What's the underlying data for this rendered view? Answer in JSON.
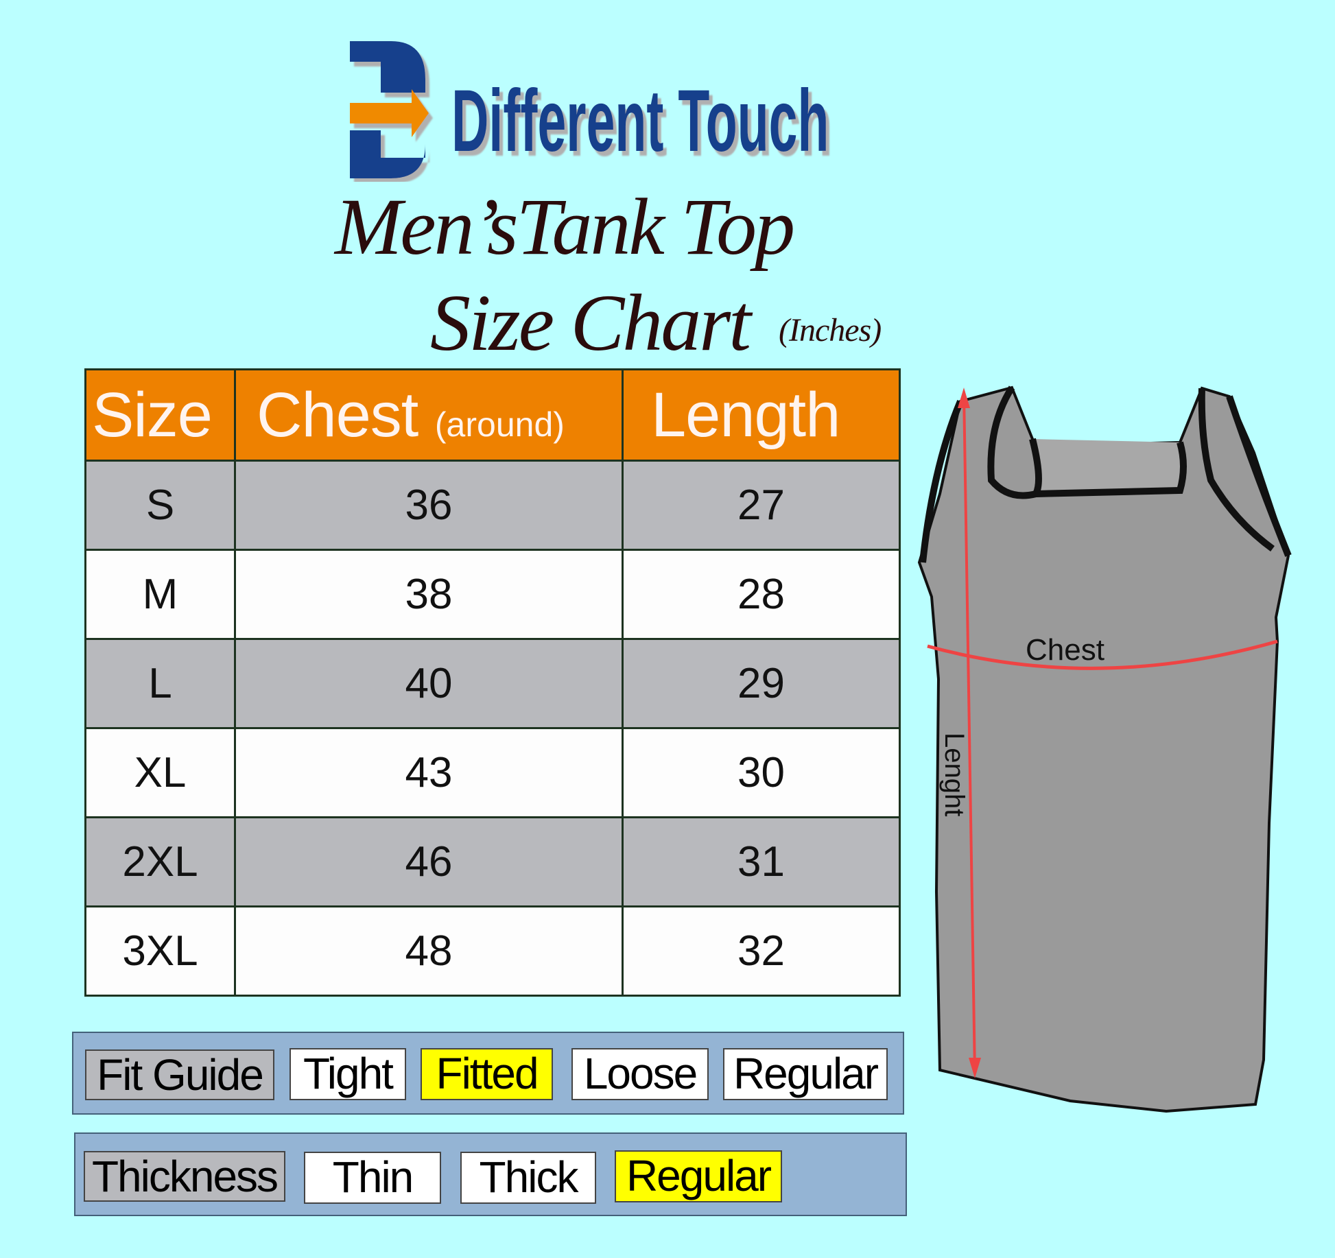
{
  "brand": {
    "name": "Different Touch",
    "colors": {
      "blue": "#123f8c",
      "orange": "#f08a00"
    }
  },
  "title": {
    "line1": "Men’sTank Top",
    "line2": "Size Chart",
    "unit": "(Inches)"
  },
  "table": {
    "headers": {
      "size": "Size",
      "chest": "Chest",
      "chest_note": "(around)",
      "length": "Length"
    },
    "rows": [
      {
        "size": "S",
        "chest": "36",
        "length": "27"
      },
      {
        "size": "M",
        "chest": "38",
        "length": "28"
      },
      {
        "size": "L",
        "chest": "40",
        "length": "29"
      },
      {
        "size": "XL",
        "chest": "43",
        "length": "30"
      },
      {
        "size": "2XL",
        "chest": "46",
        "length": "31"
      },
      {
        "size": "3XL",
        "chest": "48",
        "length": "32"
      }
    ],
    "colors": {
      "header": "#ee8100",
      "row_alt": "#b8b9bd",
      "row": "#fdfdfd"
    }
  },
  "fit_guide": {
    "label": "Fit Guide",
    "options": [
      "Tight",
      "Fitted",
      "Loose",
      "Regular"
    ],
    "selected": "Fitted"
  },
  "thickness": {
    "label": "Thickness",
    "options": [
      "Thin",
      "Thick",
      "Regular"
    ],
    "selected": "Regular"
  },
  "diagram": {
    "chest_label": "Chest",
    "length_label": "Lenght",
    "highlight_color": "#ffff00",
    "measure_color": "#ee4444"
  }
}
